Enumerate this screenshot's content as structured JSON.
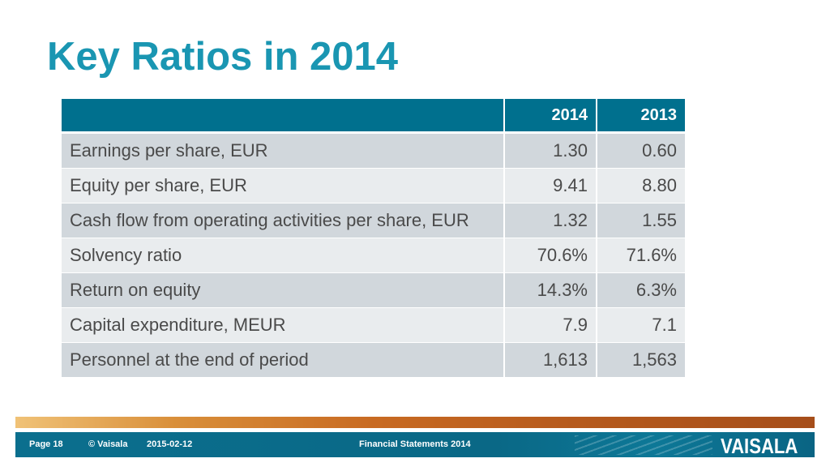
{
  "title": "Key Ratios in 2014",
  "table": {
    "headers": [
      "",
      "2014",
      "2013"
    ],
    "rows": [
      {
        "label": "Earnings per share, EUR",
        "y2014": "1.30",
        "y2013": "0.60"
      },
      {
        "label": "Equity per share, EUR",
        "y2014": "9.41",
        "y2013": "8.80"
      },
      {
        "label": "Cash flow from operating activities per share, EUR",
        "y2014": "1.32",
        "y2013": "1.55"
      },
      {
        "label": "Solvency ratio",
        "y2014": "70.6%",
        "y2013": "71.6%"
      },
      {
        "label": "Return on equity",
        "y2014": "14.3%",
        "y2013": "6.3%"
      },
      {
        "label": "Capital expenditure, MEUR",
        "y2014": "7.9",
        "y2013": "7.1"
      },
      {
        "label": "Personnel at the end of period",
        "y2014": "1,613",
        "y2013": "1,563"
      }
    ]
  },
  "footer": {
    "page": "Page  18",
    "copyright": "© Vaisala",
    "date": "2015-02-12",
    "document": "Financial Statements 2014",
    "logo": "VAISALA"
  },
  "colors": {
    "title": "#1a96b2",
    "header_bg": "#00708e",
    "row_dark": "#d1d7dc",
    "row_light": "#e9ecee",
    "footer_bg": "#0b6f8e"
  }
}
